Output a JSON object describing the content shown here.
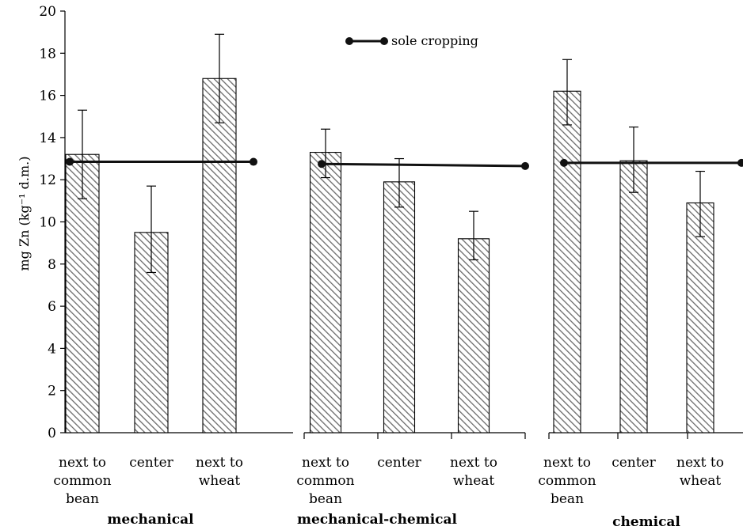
{
  "chart_data": {
    "type": "bar",
    "ylabel": "mg Zn (kg⁻¹ d.m.)",
    "ylim": [
      0,
      20
    ],
    "yticks": [
      0,
      2,
      4,
      6,
      8,
      10,
      12,
      14,
      16,
      18,
      20
    ],
    "legend": {
      "label": "sole cropping",
      "placement": "top-center"
    },
    "panels": [
      {
        "group_label": "mechanical",
        "categories": [
          [
            "next to",
            "common",
            "bean"
          ],
          [
            "center"
          ],
          [
            "next to",
            "wheat"
          ]
        ],
        "values": [
          13.2,
          9.5,
          16.8
        ],
        "error_low": [
          11.1,
          7.6,
          14.7
        ],
        "error_high": [
          15.3,
          11.7,
          18.9
        ],
        "sole_cropping": [
          12.85,
          12.85
        ]
      },
      {
        "group_label": "mechanical-chemical",
        "categories": [
          [
            "next to",
            "common",
            "bean"
          ],
          [
            "center"
          ],
          [
            "next to",
            "wheat"
          ]
        ],
        "values": [
          13.3,
          11.9,
          9.2
        ],
        "error_low": [
          12.1,
          10.7,
          8.2
        ],
        "error_high": [
          14.4,
          13.0,
          10.5
        ],
        "sole_cropping": [
          12.75,
          12.65
        ]
      },
      {
        "group_label": "chemical",
        "categories": [
          [
            "next to",
            "common",
            "bean"
          ],
          [
            "center"
          ],
          [
            "next to",
            "wheat"
          ]
        ],
        "values": [
          16.2,
          12.9,
          10.9
        ],
        "error_low": [
          14.6,
          11.4,
          9.3
        ],
        "error_high": [
          17.7,
          14.5,
          12.4
        ],
        "sole_cropping": [
          12.8,
          12.8
        ]
      }
    ]
  }
}
